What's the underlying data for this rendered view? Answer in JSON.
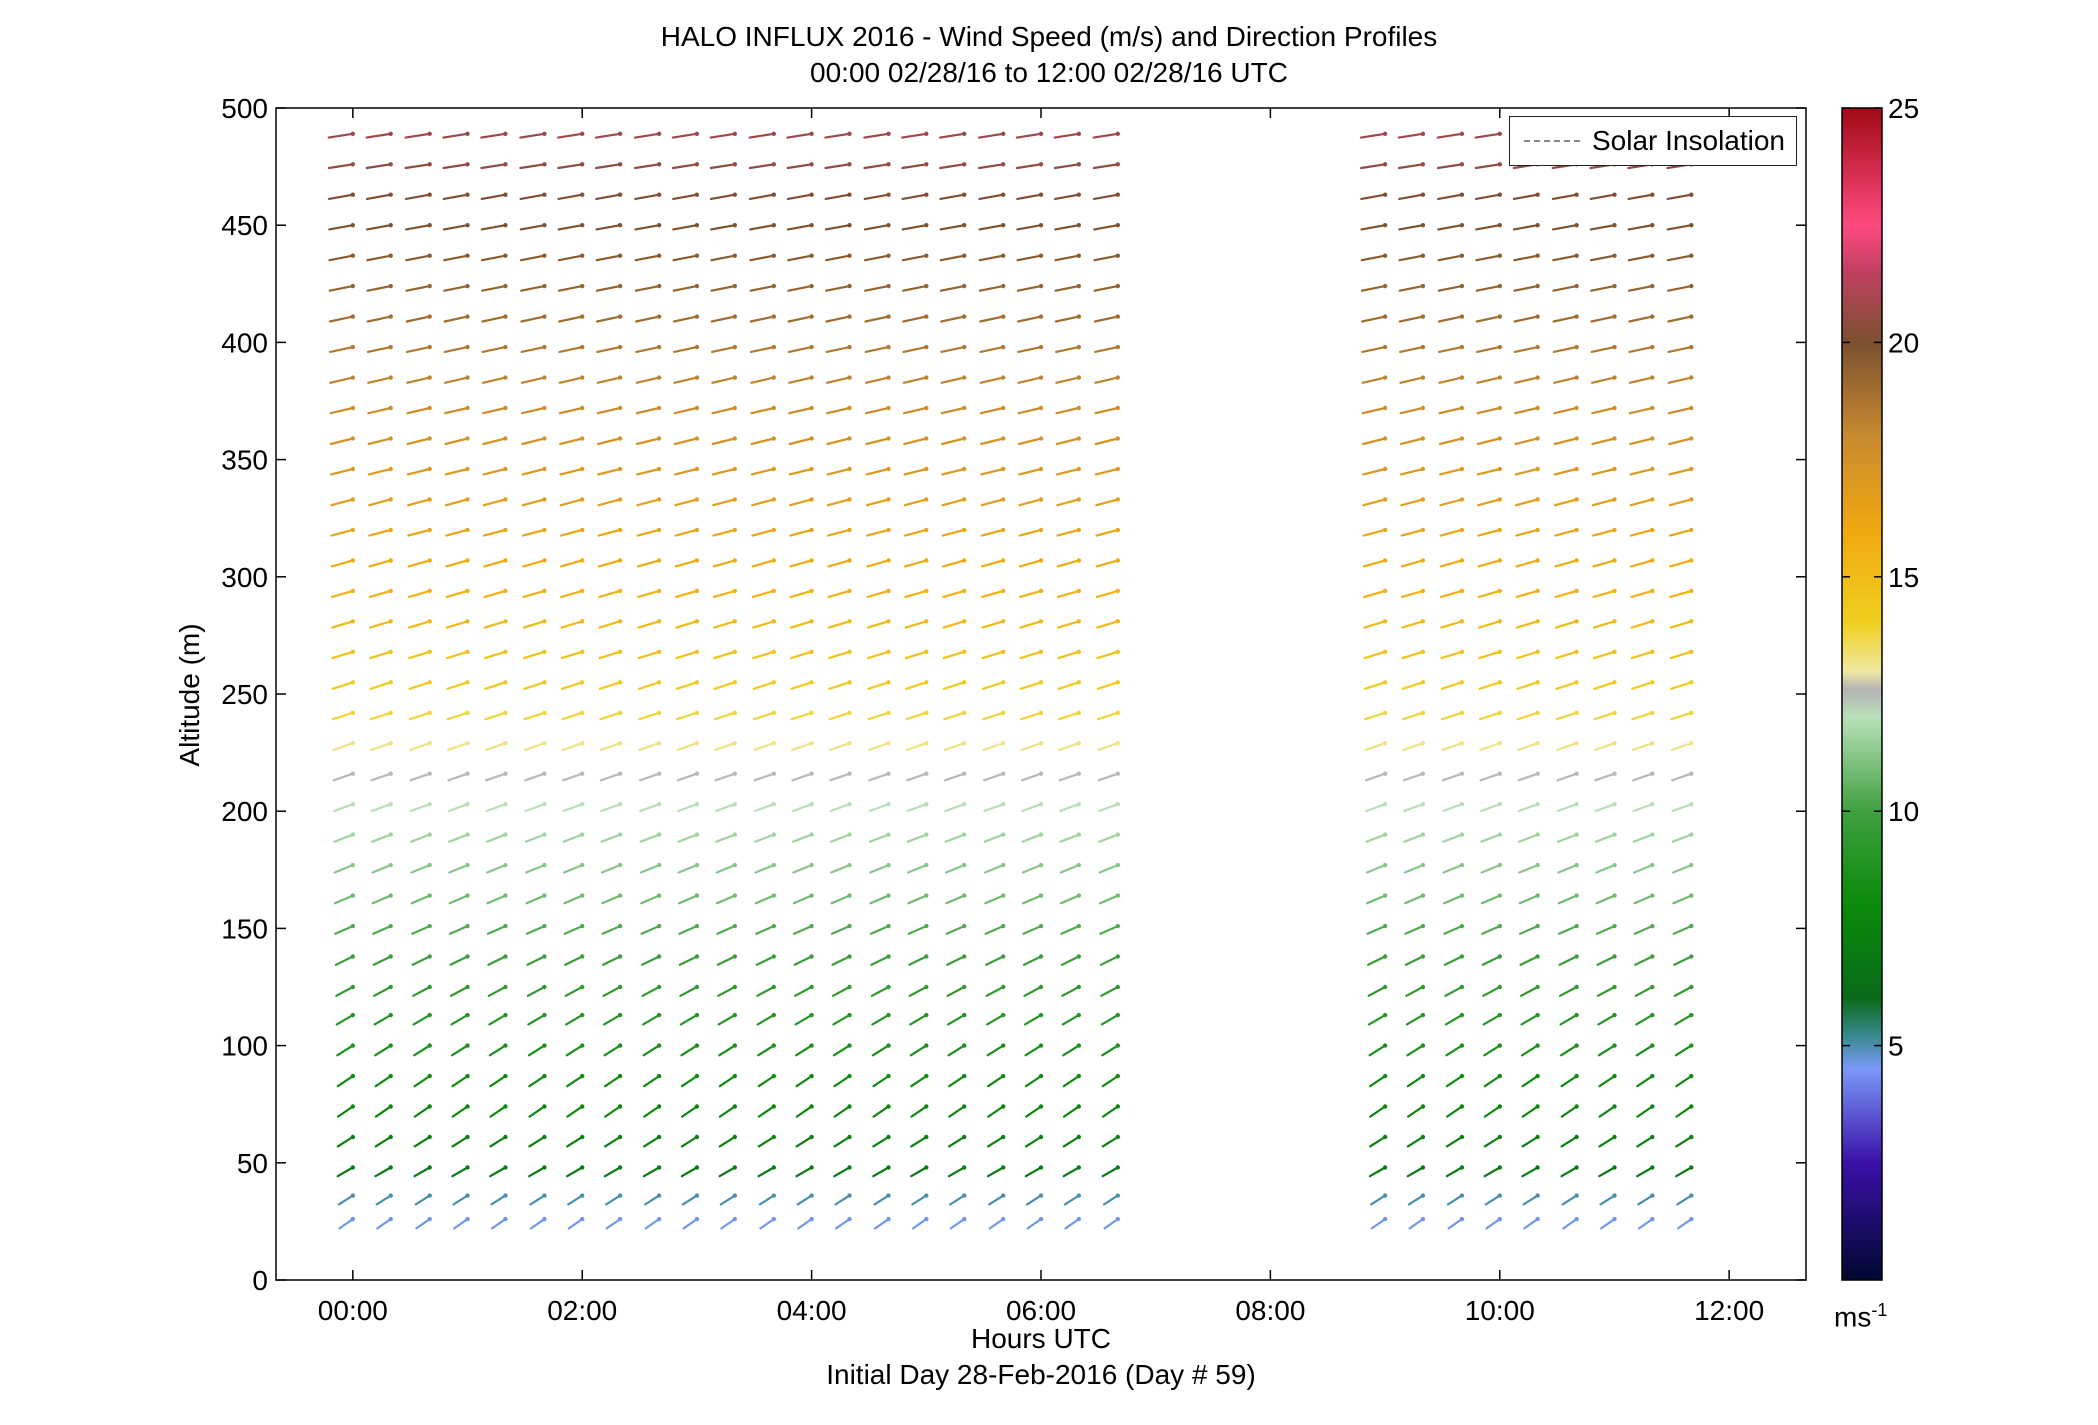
{
  "titles": {
    "line1": "HALO INFLUX 2016 - Wind Speed (m/s) and Direction Profiles",
    "line2": "00:00 02/28/16 to 12:00 02/28/16  UTC"
  },
  "axis_labels": {
    "x": "Hours UTC",
    "x_sub": "Initial Day 28-Feb-2016 (Day # 59)",
    "y": "Altitude (m)"
  },
  "legend": {
    "label": "Solar Insolation"
  },
  "colorbar": {
    "unit_base": "ms",
    "unit_exp": "-1",
    "ticks": [
      "5",
      "10",
      "15",
      "20",
      "25"
    ],
    "stops": [
      {
        "v": 0,
        "c": "#000830"
      },
      {
        "v": 2.5,
        "c": "#3a10a8"
      },
      {
        "v": 4.5,
        "c": "#7a98f8"
      },
      {
        "v": 5.2,
        "c": "#3a8a90"
      },
      {
        "v": 6.0,
        "c": "#0a6a1a"
      },
      {
        "v": 8.0,
        "c": "#0a8a0a"
      },
      {
        "v": 10.0,
        "c": "#40a040"
      },
      {
        "v": 12.0,
        "c": "#b8e0b8"
      },
      {
        "v": 12.6,
        "c": "#b4b4b4"
      },
      {
        "v": 13.0,
        "c": "#f0e8a0"
      },
      {
        "v": 14.0,
        "c": "#f0d020"
      },
      {
        "v": 16.0,
        "c": "#f0a810"
      },
      {
        "v": 18.0,
        "c": "#c88a30"
      },
      {
        "v": 20.0,
        "c": "#7a5030"
      },
      {
        "v": 21.5,
        "c": "#c04060"
      },
      {
        "v": 22.5,
        "c": "#ff4a80"
      },
      {
        "v": 25.0,
        "c": "#a00a14"
      }
    ]
  },
  "chart_data": {
    "type": "quiver",
    "title": "HALO INFLUX 2016 - Wind Speed (m/s) and Direction Profiles",
    "subtitle": "00:00 02/28/16 to 12:00 02/28/16  UTC",
    "xlabel": "Hours UTC",
    "ylabel": "Altitude (m)",
    "xlim": [
      -0.67,
      12.67
    ],
    "ylim": [
      0,
      500
    ],
    "x_tick_values": [
      0,
      2,
      4,
      6,
      8,
      10,
      12
    ],
    "x_tick_labels": [
      "00:00",
      "02:00",
      "04:00",
      "06:00",
      "08:00",
      "10:00",
      "12:00"
    ],
    "y_ticks": [
      0,
      50,
      100,
      150,
      200,
      250,
      300,
      350,
      400,
      450,
      500
    ],
    "colorbar_range": [
      0,
      25
    ],
    "colorbar_unit": "ms-1",
    "altitudes": [
      26,
      36,
      48,
      61,
      74,
      87,
      100,
      113,
      125,
      138,
      151,
      164,
      177,
      190,
      203,
      216,
      229,
      242,
      255,
      268,
      281,
      294,
      307,
      320,
      333,
      346,
      359,
      372,
      385,
      398,
      411,
      424,
      437,
      450,
      463,
      476,
      489
    ],
    "times_hours": [
      0.0,
      0.33,
      0.67,
      1.0,
      1.33,
      1.67,
      2.0,
      2.33,
      2.67,
      3.0,
      3.33,
      3.67,
      4.0,
      4.33,
      4.67,
      5.0,
      5.33,
      5.67,
      6.0,
      6.33,
      6.67,
      9.0,
      9.33,
      9.67,
      10.0,
      10.33,
      10.67,
      11.0,
      11.33,
      11.67
    ],
    "gap_hours": [
      6.67,
      9.0
    ],
    "altitude_profiles": [
      {
        "alt": 26,
        "speed": 4.6,
        "dir": 235
      },
      {
        "alt": 36,
        "speed": 5.0,
        "dir": 238
      },
      {
        "alt": 48,
        "speed": 7.0,
        "dir": 240
      },
      {
        "alt": 61,
        "speed": 7.4,
        "dir": 238
      },
      {
        "alt": 74,
        "speed": 7.8,
        "dir": 236
      },
      {
        "alt": 87,
        "speed": 8.2,
        "dir": 236
      },
      {
        "alt": 100,
        "speed": 8.6,
        "dir": 238
      },
      {
        "alt": 113,
        "speed": 9.0,
        "dir": 240
      },
      {
        "alt": 125,
        "speed": 9.4,
        "dir": 242
      },
      {
        "alt": 138,
        "speed": 9.8,
        "dir": 244
      },
      {
        "alt": 151,
        "speed": 10.3,
        "dir": 246
      },
      {
        "alt": 164,
        "speed": 10.8,
        "dir": 247
      },
      {
        "alt": 177,
        "speed": 11.2,
        "dir": 248
      },
      {
        "alt": 190,
        "speed": 11.6,
        "dir": 249
      },
      {
        "alt": 203,
        "speed": 12.0,
        "dir": 250
      },
      {
        "alt": 216,
        "speed": 12.5,
        "dir": 251
      },
      {
        "alt": 229,
        "speed": 13.2,
        "dir": 251
      },
      {
        "alt": 242,
        "speed": 13.8,
        "dir": 252
      },
      {
        "alt": 255,
        "speed": 14.3,
        "dir": 252
      },
      {
        "alt": 268,
        "speed": 14.7,
        "dir": 253
      },
      {
        "alt": 281,
        "speed": 15.1,
        "dir": 253
      },
      {
        "alt": 294,
        "speed": 15.5,
        "dir": 254
      },
      {
        "alt": 307,
        "speed": 15.9,
        "dir": 254
      },
      {
        "alt": 320,
        "speed": 16.2,
        "dir": 255
      },
      {
        "alt": 333,
        "speed": 16.6,
        "dir": 255
      },
      {
        "alt": 346,
        "speed": 17.0,
        "dir": 256
      },
      {
        "alt": 359,
        "speed": 17.4,
        "dir": 256
      },
      {
        "alt": 372,
        "speed": 17.8,
        "dir": 257
      },
      {
        "alt": 385,
        "speed": 18.2,
        "dir": 257
      },
      {
        "alt": 398,
        "speed": 18.6,
        "dir": 258
      },
      {
        "alt": 411,
        "speed": 19.0,
        "dir": 258
      },
      {
        "alt": 424,
        "speed": 19.3,
        "dir": 259
      },
      {
        "alt": 437,
        "speed": 19.6,
        "dir": 259
      },
      {
        "alt": 450,
        "speed": 19.9,
        "dir": 260
      },
      {
        "alt": 463,
        "speed": 20.2,
        "dir": 260
      },
      {
        "alt": 476,
        "speed": 20.5,
        "dir": 261
      },
      {
        "alt": 489,
        "speed": 20.8,
        "dir": 261
      }
    ]
  }
}
